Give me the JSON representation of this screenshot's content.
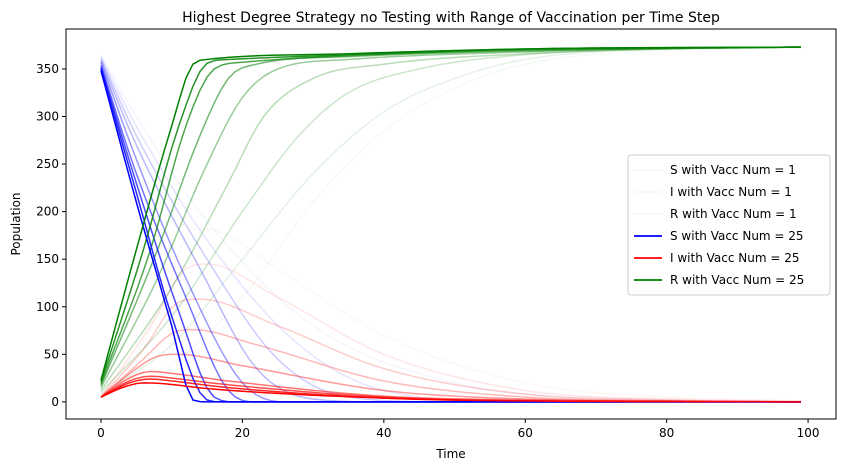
{
  "chart_data": {
    "type": "line",
    "title": "Highest Degree Strategy no Testing with Range of Vaccination per Time Step",
    "xlabel": "Time",
    "ylabel": "Population",
    "xlim": [
      -4.95,
      103.95
    ],
    "ylim": [
      -18,
      392
    ],
    "xticks": [
      0,
      20,
      40,
      60,
      80,
      100
    ],
    "yticks": [
      0,
      50,
      100,
      150,
      200,
      250,
      300,
      350
    ],
    "grid": false,
    "legend_position": "center-right",
    "colors": {
      "S": "#0000ff",
      "I": "#ff0000",
      "R": "#008000"
    },
    "legend": [
      {
        "label": "S with Vacc Num = 1",
        "color": "#0000ff",
        "opacity": 0.04
      },
      {
        "label": "I with Vacc Num = 1",
        "color": "#ff0000",
        "opacity": 0.04
      },
      {
        "label": "R with Vacc Num = 1",
        "color": "#008000",
        "opacity": 0.04
      },
      {
        "label": "S with Vacc Num = 25",
        "color": "#0000ff",
        "opacity": 1.0
      },
      {
        "label": "I with Vacc Num = 25",
        "color": "#ff0000",
        "opacity": 1.0
      },
      {
        "label": "R with Vacc Num = 25",
        "color": "#008000",
        "opacity": 1.0
      }
    ],
    "vacc_nums": [
      1,
      4,
      7,
      10,
      13,
      16,
      19,
      22,
      25
    ],
    "series_groups": [
      {
        "vacc_num": 1,
        "opacity": 0.04,
        "S": [
          [
            0,
            365
          ],
          [
            5,
            300
          ],
          [
            15,
            190
          ],
          [
            30,
            80
          ],
          [
            50,
            20
          ],
          [
            70,
            4
          ],
          [
            99,
            0
          ]
        ],
        "I": [
          [
            0,
            5
          ],
          [
            8,
            90
          ],
          [
            13,
            182
          ],
          [
            17,
            178
          ],
          [
            25,
            140
          ],
          [
            40,
            70
          ],
          [
            60,
            20
          ],
          [
            80,
            5
          ],
          [
            99,
            1
          ]
        ],
        "R": [
          [
            0,
            5
          ],
          [
            10,
            40
          ],
          [
            20,
            110
          ],
          [
            30,
            210
          ],
          [
            40,
            285
          ],
          [
            50,
            330
          ],
          [
            60,
            355
          ],
          [
            75,
            368
          ],
          [
            99,
            372
          ]
        ]
      },
      {
        "vacc_num": 4,
        "opacity": 0.1,
        "S": [
          [
            0,
            363
          ],
          [
            5,
            290
          ],
          [
            15,
            170
          ],
          [
            28,
            60
          ],
          [
            40,
            12
          ],
          [
            60,
            0
          ],
          [
            99,
            0
          ]
        ],
        "I": [
          [
            0,
            5
          ],
          [
            7,
            80
          ],
          [
            12,
            140
          ],
          [
            15,
            145
          ],
          [
            25,
            110
          ],
          [
            40,
            50
          ],
          [
            60,
            12
          ],
          [
            80,
            3
          ],
          [
            99,
            1
          ]
        ],
        "R": [
          [
            0,
            8
          ],
          [
            10,
            60
          ],
          [
            20,
            150
          ],
          [
            30,
            240
          ],
          [
            40,
            305
          ],
          [
            50,
            340
          ],
          [
            60,
            360
          ],
          [
            75,
            370
          ],
          [
            99,
            373
          ]
        ]
      },
      {
        "vacc_num": 7,
        "opacity": 0.2,
        "S": [
          [
            0,
            361
          ],
          [
            5,
            280
          ],
          [
            15,
            150
          ],
          [
            25,
            45
          ],
          [
            35,
            5
          ],
          [
            50,
            0
          ],
          [
            99,
            0
          ]
        ],
        "I": [
          [
            0,
            5
          ],
          [
            6,
            55
          ],
          [
            11,
            105
          ],
          [
            14,
            108
          ],
          [
            25,
            80
          ],
          [
            40,
            35
          ],
          [
            60,
            8
          ],
          [
            80,
            2
          ],
          [
            99,
            0
          ]
        ],
        "R": [
          [
            0,
            10
          ],
          [
            10,
            90
          ],
          [
            20,
            200
          ],
          [
            28,
            280
          ],
          [
            35,
            325
          ],
          [
            45,
            350
          ],
          [
            60,
            365
          ],
          [
            80,
            371
          ],
          [
            99,
            373
          ]
        ]
      },
      {
        "vacc_num": 10,
        "opacity": 0.28,
        "S": [
          [
            0,
            359
          ],
          [
            5,
            270
          ],
          [
            14,
            140
          ],
          [
            22,
            35
          ],
          [
            30,
            3
          ],
          [
            40,
            0
          ],
          [
            99,
            0
          ]
        ],
        "I": [
          [
            0,
            5
          ],
          [
            6,
            45
          ],
          [
            10,
            72
          ],
          [
            13,
            76
          ],
          [
            22,
            60
          ],
          [
            40,
            22
          ],
          [
            60,
            5
          ],
          [
            80,
            1
          ],
          [
            99,
            0
          ]
        ],
        "R": [
          [
            0,
            12
          ],
          [
            10,
            120
          ],
          [
            18,
            230
          ],
          [
            23,
            300
          ],
          [
            30,
            340
          ],
          [
            40,
            355
          ],
          [
            60,
            366
          ],
          [
            80,
            371
          ],
          [
            99,
            373
          ]
        ]
      },
      {
        "vacc_num": 13,
        "opacity": 0.4,
        "S": [
          [
            0,
            357
          ],
          [
            5,
            255
          ],
          [
            12,
            130
          ],
          [
            20,
            20
          ],
          [
            26,
            0
          ],
          [
            40,
            0
          ],
          [
            99,
            0
          ]
        ],
        "I": [
          [
            0,
            5
          ],
          [
            5,
            35
          ],
          [
            8,
            48
          ],
          [
            11,
            50
          ],
          [
            20,
            38
          ],
          [
            40,
            12
          ],
          [
            60,
            3
          ],
          [
            80,
            1
          ],
          [
            99,
            0
          ]
        ],
        "R": [
          [
            0,
            15
          ],
          [
            8,
            130
          ],
          [
            15,
            250
          ],
          [
            20,
            320
          ],
          [
            25,
            350
          ],
          [
            35,
            360
          ],
          [
            60,
            368
          ],
          [
            80,
            372
          ],
          [
            99,
            373
          ]
        ]
      },
      {
        "vacc_num": 16,
        "opacity": 0.55,
        "S": [
          [
            0,
            354
          ],
          [
            5,
            240
          ],
          [
            12,
            110
          ],
          [
            18,
            12
          ],
          [
            22,
            0
          ],
          [
            40,
            0
          ],
          [
            99,
            0
          ]
        ],
        "I": [
          [
            0,
            5
          ],
          [
            4,
            25
          ],
          [
            7,
            32
          ],
          [
            10,
            30
          ],
          [
            18,
            22
          ],
          [
            40,
            6
          ],
          [
            60,
            2
          ],
          [
            99,
            0
          ]
        ],
        "R": [
          [
            0,
            17
          ],
          [
            8,
            160
          ],
          [
            14,
            280
          ],
          [
            18,
            340
          ],
          [
            22,
            355
          ],
          [
            35,
            363
          ],
          [
            60,
            369
          ],
          [
            99,
            373
          ]
        ]
      },
      {
        "vacc_num": 19,
        "opacity": 0.7,
        "S": [
          [
            0,
            352
          ],
          [
            5,
            230
          ],
          [
            11,
            95
          ],
          [
            16,
            5
          ],
          [
            19,
            0
          ],
          [
            40,
            0
          ],
          [
            99,
            0
          ]
        ],
        "I": [
          [
            0,
            5
          ],
          [
            4,
            22
          ],
          [
            7,
            27
          ],
          [
            10,
            25
          ],
          [
            18,
            18
          ],
          [
            40,
            5
          ],
          [
            60,
            1
          ],
          [
            99,
            0
          ]
        ],
        "R": [
          [
            0,
            19
          ],
          [
            7,
            160
          ],
          [
            12,
            290
          ],
          [
            16,
            350
          ],
          [
            20,
            357
          ],
          [
            35,
            364
          ],
          [
            60,
            370
          ],
          [
            99,
            373
          ]
        ]
      },
      {
        "vacc_num": 22,
        "opacity": 0.85,
        "S": [
          [
            0,
            350
          ],
          [
            5,
            220
          ],
          [
            10,
            90
          ],
          [
            15,
            2
          ],
          [
            17,
            0
          ],
          [
            40,
            0
          ],
          [
            99,
            0
          ]
        ],
        "I": [
          [
            0,
            5
          ],
          [
            4,
            20
          ],
          [
            7,
            24
          ],
          [
            10,
            22
          ],
          [
            18,
            15
          ],
          [
            40,
            4
          ],
          [
            60,
            1
          ],
          [
            99,
            0
          ]
        ],
        "R": [
          [
            0,
            21
          ],
          [
            6,
            160
          ],
          [
            11,
            290
          ],
          [
            15,
            356
          ],
          [
            18,
            360
          ],
          [
            35,
            365
          ],
          [
            60,
            371
          ],
          [
            99,
            373
          ]
        ]
      },
      {
        "vacc_num": 25,
        "opacity": 1.0,
        "S": [
          [
            0,
            348
          ],
          [
            5,
            210
          ],
          [
            10,
            80
          ],
          [
            13,
            2
          ],
          [
            15,
            0
          ],
          [
            40,
            0
          ],
          [
            99,
            0
          ]
        ],
        "I": [
          [
            0,
            5
          ],
          [
            3,
            15
          ],
          [
            6,
            20
          ],
          [
            9,
            19
          ],
          [
            15,
            14
          ],
          [
            40,
            4
          ],
          [
            60,
            1
          ],
          [
            99,
            0
          ]
        ],
        "R": [
          [
            0,
            23
          ],
          [
            5,
            160
          ],
          [
            10,
            290
          ],
          [
            13,
            355
          ],
          [
            15,
            360
          ],
          [
            35,
            366
          ],
          [
            60,
            371
          ],
          [
            99,
            373
          ]
        ]
      }
    ]
  }
}
